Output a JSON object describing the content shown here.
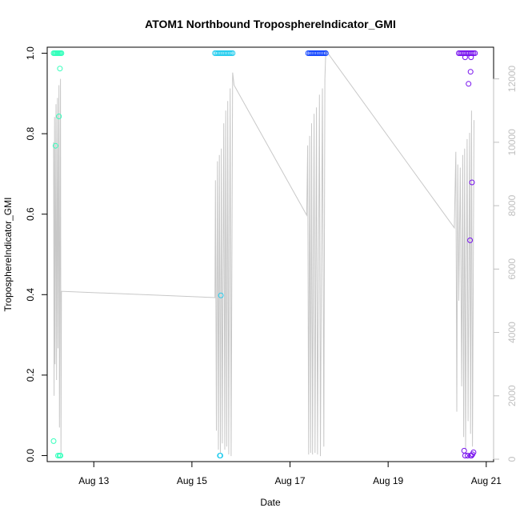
{
  "chart_data": {
    "type": "scatter",
    "title": "ATOM1 Northbound TroposphereIndicator_GMI",
    "xlabel": "Date",
    "ylabel": "TroposphereIndicator_GMI",
    "xlim": [
      12.05,
      21.15
    ],
    "ylim": [
      -0.015,
      1.015
    ],
    "y2lim": [
      -75,
      13000
    ],
    "x_ticks": [
      13,
      15,
      17,
      19,
      21
    ],
    "x_tick_labels": [
      "Aug 13",
      "Aug 15",
      "Aug 17",
      "Aug 19",
      "Aug 21"
    ],
    "y_ticks": [
      0,
      0.2,
      0.4,
      0.6,
      0.8,
      1.0
    ],
    "y_tick_labels": [
      "0.0",
      "0.2",
      "0.4",
      "0.6",
      "0.8",
      "1.0"
    ],
    "y2_ticks": [
      0,
      2000,
      4000,
      6000,
      8000,
      10000,
      12000
    ],
    "y2_tick_labels": [
      "0",
      "2000",
      "4000",
      "6000",
      "8000",
      "10000",
      "12000"
    ],
    "colors": {
      "trace": "#c8c8c8",
      "right_axis": "#bfbfbf",
      "pass1": "#33ffbb",
      "pass2": "#22ccee",
      "pass3": "#1144ff",
      "pass4": "#7711ee"
    },
    "series": [
      {
        "color_key": "pass1",
        "points": [
          [
            12.18,
            1.0
          ],
          [
            12.2,
            1.0
          ],
          [
            12.22,
            1.0
          ],
          [
            12.24,
            1.0
          ],
          [
            12.26,
            1.0
          ],
          [
            12.28,
            1.0
          ],
          [
            12.3,
            1.0
          ],
          [
            12.32,
            1.0
          ],
          [
            12.34,
            1.0
          ],
          [
            12.22,
            0.77
          ],
          [
            12.27,
            0.0
          ],
          [
            12.29,
            0.843
          ],
          [
            12.3,
            0.0
          ],
          [
            12.31,
            0.962
          ],
          [
            12.18,
            0.036
          ],
          [
            12.32,
            0.0
          ]
        ]
      },
      {
        "color_key": "pass2",
        "points": [
          [
            15.47,
            1.0
          ],
          [
            15.5,
            1.0
          ],
          [
            15.53,
            1.0
          ],
          [
            15.56,
            1.0
          ],
          [
            15.59,
            1.0
          ],
          [
            15.62,
            1.0
          ],
          [
            15.65,
            1.0
          ],
          [
            15.68,
            1.0
          ],
          [
            15.71,
            1.0
          ],
          [
            15.74,
            1.0
          ],
          [
            15.77,
            1.0
          ],
          [
            15.8,
            1.0
          ],
          [
            15.83,
            1.0
          ],
          [
            15.57,
            0.0
          ],
          [
            15.58,
            0.0
          ],
          [
            15.59,
            0.398
          ]
        ]
      },
      {
        "color_key": "pass3",
        "points": [
          [
            17.37,
            1.0
          ],
          [
            17.4,
            1.0
          ],
          [
            17.43,
            1.0
          ],
          [
            17.46,
            1.0
          ],
          [
            17.49,
            1.0
          ],
          [
            17.52,
            1.0
          ],
          [
            17.55,
            1.0
          ],
          [
            17.58,
            1.0
          ],
          [
            17.61,
            1.0
          ],
          [
            17.64,
            1.0
          ],
          [
            17.67,
            1.0
          ],
          [
            17.7,
            1.0
          ],
          [
            17.73,
            1.0
          ]
        ]
      },
      {
        "color_key": "pass4",
        "points": [
          [
            20.44,
            1.0
          ],
          [
            20.47,
            1.0
          ],
          [
            20.5,
            1.0
          ],
          [
            20.53,
            1.0
          ],
          [
            20.56,
            1.0
          ],
          [
            20.59,
            1.0
          ],
          [
            20.62,
            1.0
          ],
          [
            20.65,
            1.0
          ],
          [
            20.68,
            1.0
          ],
          [
            20.71,
            1.0
          ],
          [
            20.74,
            1.0
          ],
          [
            20.77,
            1.0
          ],
          [
            20.57,
            0.99
          ],
          [
            20.69,
            0.99
          ],
          [
            20.64,
            0.924
          ],
          [
            20.68,
            0.954
          ],
          [
            20.71,
            0.679
          ],
          [
            20.67,
            0.535
          ],
          [
            20.55,
            0.012
          ],
          [
            20.57,
            0.0
          ],
          [
            20.62,
            0.0
          ],
          [
            20.68,
            0.0
          ],
          [
            20.7,
            0.0
          ],
          [
            20.72,
            0.003
          ],
          [
            20.74,
            0.008
          ]
        ]
      }
    ],
    "secondary_trace": [
      [
        12.18,
        10000
      ],
      [
        12.19,
        2000
      ],
      [
        12.2,
        10800
      ],
      [
        12.21,
        3000
      ],
      [
        12.23,
        11200
      ],
      [
        12.24,
        2500
      ],
      [
        12.26,
        11400
      ],
      [
        12.27,
        3500
      ],
      [
        12.29,
        11800
      ],
      [
        12.3,
        1000
      ],
      [
        12.32,
        12000
      ],
      [
        12.33,
        200
      ],
      [
        12.34,
        5300
      ],
      [
        15.47,
        5100
      ],
      [
        15.48,
        8800
      ],
      [
        15.5,
        900
      ],
      [
        15.52,
        9400
      ],
      [
        15.54,
        300
      ],
      [
        15.56,
        9600
      ],
      [
        15.58,
        200
      ],
      [
        15.6,
        9800
      ],
      [
        15.62,
        500
      ],
      [
        15.65,
        10600
      ],
      [
        15.67,
        300
      ],
      [
        15.69,
        11000
      ],
      [
        15.71,
        400
      ],
      [
        15.73,
        11300
      ],
      [
        15.75,
        150
      ],
      [
        15.78,
        11700
      ],
      [
        15.8,
        100
      ],
      [
        15.83,
        12200
      ],
      [
        15.86,
        11800
      ],
      [
        17.34,
        7700
      ],
      [
        17.36,
        9900
      ],
      [
        17.38,
        150
      ],
      [
        17.4,
        10200
      ],
      [
        17.42,
        200
      ],
      [
        17.44,
        10600
      ],
      [
        17.46,
        150
      ],
      [
        17.49,
        10900
      ],
      [
        17.51,
        200
      ],
      [
        17.54,
        11100
      ],
      [
        17.56,
        150
      ],
      [
        17.6,
        11500
      ],
      [
        17.62,
        100
      ],
      [
        17.66,
        11700
      ],
      [
        17.69,
        400
      ],
      [
        17.71,
        12000
      ],
      [
        17.73,
        12900
      ],
      [
        20.35,
        7300
      ],
      [
        20.38,
        9700
      ],
      [
        20.4,
        1500
      ],
      [
        20.42,
        9300
      ],
      [
        20.44,
        5000
      ],
      [
        20.47,
        9200
      ],
      [
        20.5,
        2300
      ],
      [
        20.52,
        9600
      ],
      [
        20.54,
        700
      ],
      [
        20.56,
        9800
      ],
      [
        20.58,
        300
      ],
      [
        20.61,
        10100
      ],
      [
        20.63,
        1200
      ],
      [
        20.66,
        10300
      ],
      [
        20.68,
        800
      ],
      [
        20.7,
        11000
      ],
      [
        20.72,
        400
      ],
      [
        20.75,
        10700
      ]
    ]
  }
}
